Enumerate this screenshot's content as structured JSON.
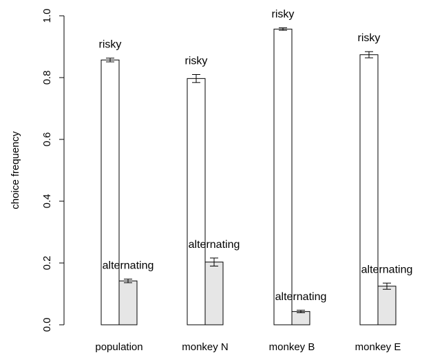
{
  "chart_data": {
    "type": "bar",
    "ylabel": "choice frequency",
    "xlabel": "",
    "ylim": [
      0,
      1
    ],
    "yticks": [
      "0.0",
      "0.2",
      "0.4",
      "0.6",
      "0.8",
      "1.0"
    ],
    "categories": [
      "population",
      "monkey N",
      "monkey B",
      "monkey E"
    ],
    "series": [
      {
        "name": "risky",
        "color": "#ffffff",
        "values": [
          0.857,
          0.797,
          0.957,
          0.874
        ],
        "err": [
          0.006,
          0.013,
          0.004,
          0.01
        ],
        "labels": [
          "risky",
          "risky",
          "risky",
          "risky"
        ]
      },
      {
        "name": "alternating",
        "color": "#e6e6e6",
        "values": [
          0.142,
          0.203,
          0.043,
          0.125
        ],
        "err": [
          0.006,
          0.013,
          0.004,
          0.01
        ],
        "labels": [
          "alternating",
          "alternating",
          "alternating",
          "alternating"
        ]
      }
    ],
    "grid": false,
    "legend": "none"
  }
}
